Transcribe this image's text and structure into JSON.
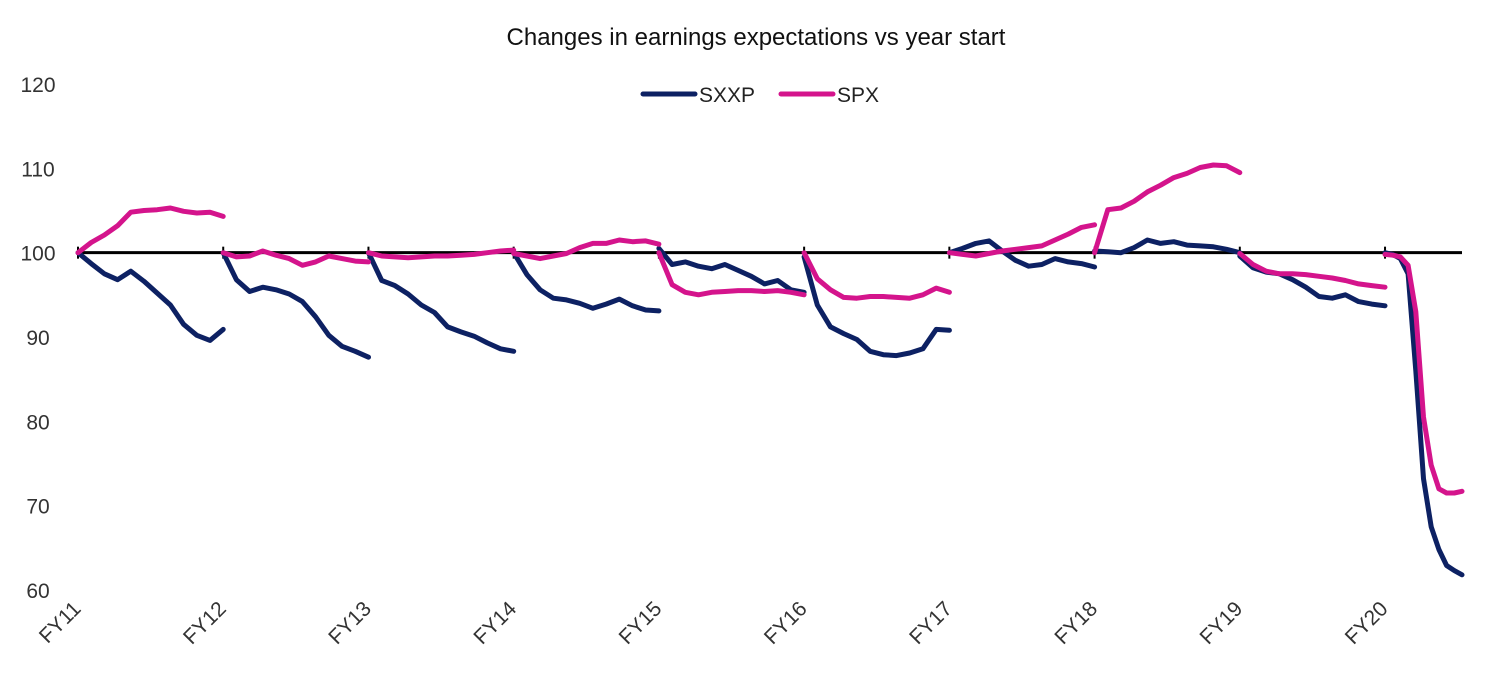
{
  "chart_data": {
    "type": "line",
    "title": "Changes in earnings expectations vs year start",
    "xlabel": "",
    "ylabel": "",
    "ylim": [
      60,
      120
    ],
    "yticks": [
      60,
      70,
      80,
      90,
      100,
      110,
      120
    ],
    "baseline": 100,
    "grid": false,
    "legend_position": "top-center",
    "categories": [
      "FY11",
      "FY12",
      "FY13",
      "FY14",
      "FY15",
      "FY16",
      "FY17",
      "FY18",
      "FY19",
      "FY20"
    ],
    "series": [
      {
        "name": "SXXP",
        "color": "#0d2163",
        "segments": [
          {
            "year": "FY11",
            "values": [
              100,
              98.7,
              97.5,
              96.8,
              97.8,
              96.6,
              95.2,
              93.8,
              91.5,
              90.2,
              89.6,
              90.9
            ]
          },
          {
            "year": "FY12",
            "values": [
              100,
              96.8,
              95.4,
              95.9,
              95.6,
              95.1,
              94.2,
              92.4,
              90.2,
              88.9,
              88.3,
              87.6
            ]
          },
          {
            "year": "FY13",
            "values": [
              100,
              96.7,
              96.1,
              95.1,
              93.8,
              92.9,
              91.2,
              90.6,
              90.1,
              89.3,
              88.6,
              88.3
            ]
          },
          {
            "year": "FY14",
            "values": [
              100,
              97.4,
              95.6,
              94.6,
              94.4,
              94.0,
              93.4,
              93.9,
              94.5,
              93.7,
              93.2,
              93.1
            ]
          },
          {
            "year": "FY15",
            "values": [
              100.5,
              98.6,
              98.9,
              98.4,
              98.1,
              98.6,
              97.9,
              97.2,
              96.3,
              96.7,
              95.6,
              95.3
            ]
          },
          {
            "year": "FY16",
            "values": [
              99.5,
              93.8,
              91.2,
              90.4,
              89.7,
              88.3,
              87.9,
              87.8,
              88.1,
              88.6,
              90.9,
              90.8
            ]
          },
          {
            "year": "FY17",
            "values": [
              100,
              100.5,
              101.1,
              101.4,
              100.2,
              99.1,
              98.4,
              98.6,
              99.3,
              98.9,
              98.7,
              98.3
            ]
          },
          {
            "year": "FY18",
            "values": [
              100.2,
              100.1,
              100.0,
              100.6,
              101.5,
              101.1,
              101.3,
              100.9,
              100.8,
              100.7,
              100.4,
              100.0
            ]
          },
          {
            "year": "FY19",
            "values": [
              99.6,
              98.2,
              97.7,
              97.5,
              96.8,
              95.9,
              94.8,
              94.6,
              95.0,
              94.2,
              93.9,
              93.7
            ]
          },
          {
            "year": "FY20",
            "values": [
              100,
              99.8,
              99.3,
              97.5,
              86.0,
              73.2,
              67.5,
              64.8,
              62.9,
              62.3,
              61.8
            ]
          }
        ]
      },
      {
        "name": "SPX",
        "color": "#d4148c",
        "segments": [
          {
            "year": "FY11",
            "values": [
              100,
              101.2,
              102.1,
              103.2,
              104.8,
              105.0,
              105.1,
              105.3,
              104.9,
              104.7,
              104.8,
              104.3
            ]
          },
          {
            "year": "FY12",
            "values": [
              100,
              99.5,
              99.6,
              100.2,
              99.7,
              99.3,
              98.5,
              98.9,
              99.6,
              99.3,
              99.0,
              98.9
            ]
          },
          {
            "year": "FY13",
            "values": [
              100,
              99.6,
              99.5,
              99.4,
              99.5,
              99.6,
              99.6,
              99.7,
              99.8,
              100.0,
              100.2,
              100.3
            ]
          },
          {
            "year": "FY14",
            "values": [
              99.9,
              99.6,
              99.3,
              99.6,
              99.9,
              100.6,
              101.1,
              101.1,
              101.5,
              101.3,
              101.4,
              101.0
            ]
          },
          {
            "year": "FY15",
            "values": [
              100,
              96.2,
              95.3,
              95.0,
              95.3,
              95.4,
              95.5,
              95.5,
              95.4,
              95.5,
              95.3,
              95.0
            ]
          },
          {
            "year": "FY16",
            "values": [
              100,
              96.9,
              95.6,
              94.7,
              94.6,
              94.8,
              94.8,
              94.7,
              94.6,
              95.0,
              95.8,
              95.3
            ]
          },
          {
            "year": "FY17",
            "values": [
              100,
              99.8,
              99.6,
              99.9,
              100.2,
              100.4,
              100.6,
              100.8,
              101.5,
              102.2,
              103.0,
              103.3
            ]
          },
          {
            "year": "FY18",
            "values": [
              100,
              105.1,
              105.3,
              106.1,
              107.2,
              108.0,
              108.9,
              109.4,
              110.1,
              110.4,
              110.3,
              109.5
            ]
          },
          {
            "year": "FY19",
            "values": [
              99.9,
              98.6,
              97.8,
              97.5,
              97.5,
              97.4,
              97.2,
              97.0,
              96.7,
              96.3,
              96.1,
              95.9
            ]
          },
          {
            "year": "FY20",
            "values": [
              99.8,
              99.7,
              99.5,
              98.5,
              93.0,
              80.5,
              74.8,
              72.0,
              71.5,
              71.5,
              71.7
            ]
          }
        ]
      }
    ]
  }
}
